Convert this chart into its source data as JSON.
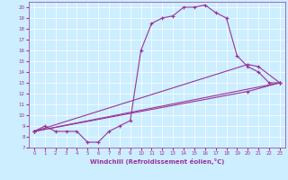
{
  "xlabel": "Windchill (Refroidissement éolien,°C)",
  "background_color": "#cceeff",
  "grid_color": "#ffffff",
  "line_color": "#993399",
  "xlim": [
    -0.5,
    23.5
  ],
  "ylim": [
    7,
    20.5
  ],
  "xticks": [
    0,
    1,
    2,
    3,
    4,
    5,
    6,
    7,
    8,
    9,
    10,
    11,
    12,
    13,
    14,
    15,
    16,
    17,
    18,
    19,
    20,
    21,
    22,
    23
  ],
  "yticks": [
    7,
    8,
    9,
    10,
    11,
    12,
    13,
    14,
    15,
    16,
    17,
    18,
    19,
    20
  ],
  "curves": [
    {
      "x": [
        0,
        1,
        2,
        3,
        4,
        5,
        6,
        7,
        8,
        9,
        10,
        11,
        12,
        13,
        14,
        15,
        16,
        17,
        18,
        19,
        20,
        21,
        22,
        23
      ],
      "y": [
        8.5,
        9,
        8.5,
        8.5,
        8.5,
        7.5,
        7.5,
        8.5,
        9,
        9.5,
        16,
        18.5,
        19,
        19.2,
        20,
        20,
        20.2,
        19.5,
        19,
        15.5,
        14.5,
        14,
        13,
        13
      ]
    },
    {
      "x": [
        0,
        23
      ],
      "y": [
        8.5,
        13
      ]
    },
    {
      "x": [
        0,
        20,
        21,
        23
      ],
      "y": [
        8.5,
        14.7,
        14.5,
        13
      ]
    },
    {
      "x": [
        0,
        20,
        23
      ],
      "y": [
        8.5,
        12.2,
        13
      ]
    }
  ]
}
